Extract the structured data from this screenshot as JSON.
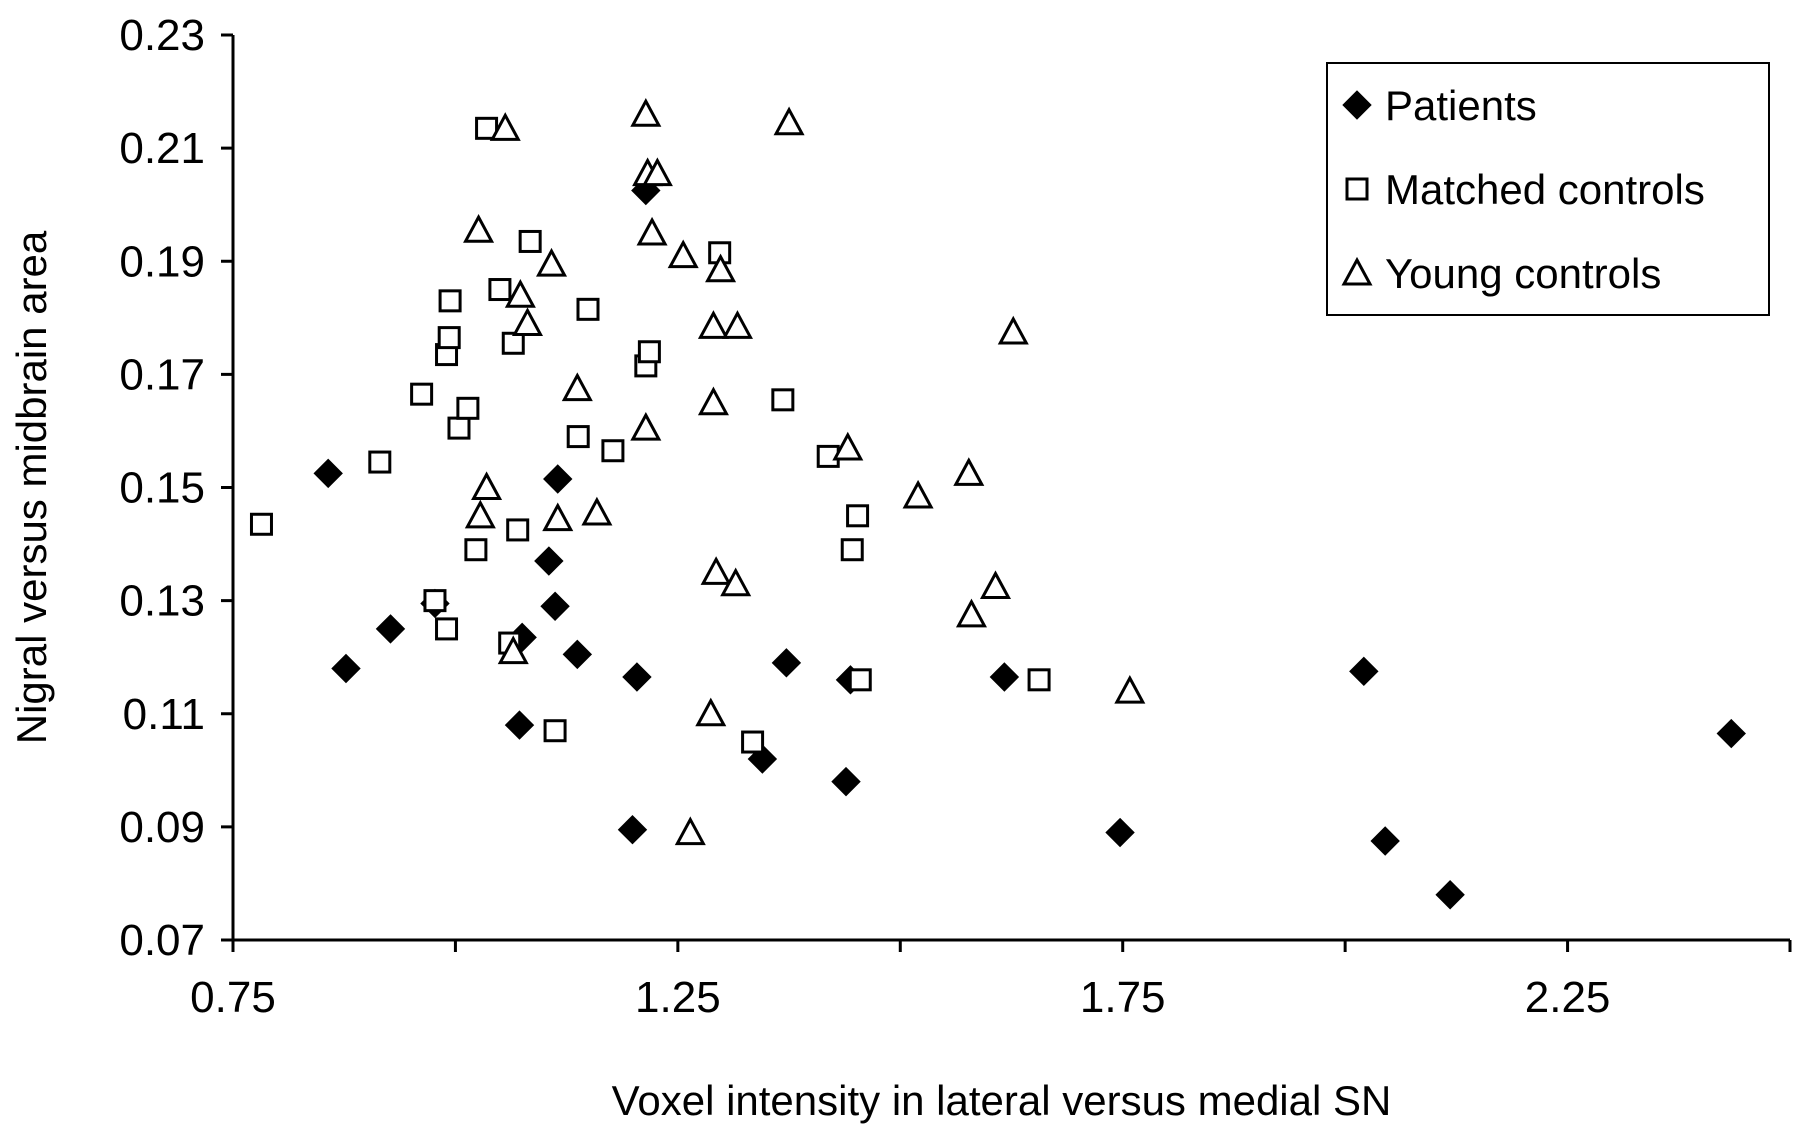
{
  "chart_data": {
    "type": "scatter",
    "xlabel": "Voxel intensity in lateral versus medial SN",
    "ylabel": "Nigral versus midbrain area",
    "xlim": [
      0.75,
      2.5
    ],
    "ylim": [
      0.07,
      0.23
    ],
    "xticks": [
      "0.75",
      "1.25",
      "1.75",
      "2.25"
    ],
    "yticks": [
      "0.07",
      "0.09",
      "0.11",
      "0.13",
      "0.15",
      "0.17",
      "0.19",
      "0.21",
      "0.23"
    ],
    "grid": false,
    "legend_position": "top-right",
    "series": [
      {
        "name": "Patients",
        "marker": "filled-diamond",
        "color": "#000000",
        "points": [
          [
            0.857,
            0.1525
          ],
          [
            0.877,
            0.118
          ],
          [
            0.927,
            0.125
          ],
          [
            0.977,
            0.1295
          ],
          [
            1.075,
            0.1235
          ],
          [
            1.072,
            0.108
          ],
          [
            1.105,
            0.137
          ],
          [
            1.112,
            0.129
          ],
          [
            1.115,
            0.1515
          ],
          [
            1.137,
            0.1205
          ],
          [
            1.199,
            0.0895
          ],
          [
            1.204,
            0.1165
          ],
          [
            1.214,
            0.2025
          ],
          [
            1.345,
            0.102
          ],
          [
            1.372,
            0.119
          ],
          [
            1.439,
            0.098
          ],
          [
            1.444,
            0.116
          ],
          [
            1.617,
            0.1165
          ],
          [
            1.747,
            0.089
          ],
          [
            2.021,
            0.1175
          ],
          [
            2.045,
            0.0875
          ],
          [
            2.118,
            0.078
          ],
          [
            2.434,
            0.1065
          ]
        ]
      },
      {
        "name": "Matched controls",
        "marker": "open-square",
        "color": "#000000",
        "points": [
          [
            0.782,
            0.1435
          ],
          [
            0.915,
            0.1545
          ],
          [
            0.962,
            0.1665
          ],
          [
            0.977,
            0.13
          ],
          [
            0.99,
            0.125
          ],
          [
            0.99,
            0.1735
          ],
          [
            0.993,
            0.1765
          ],
          [
            0.994,
            0.183
          ],
          [
            1.004,
            0.1605
          ],
          [
            1.014,
            0.164
          ],
          [
            1.023,
            0.139
          ],
          [
            1.035,
            0.2135
          ],
          [
            1.05,
            0.185
          ],
          [
            1.061,
            0.1225
          ],
          [
            1.065,
            0.1755
          ],
          [
            1.07,
            0.1425
          ],
          [
            1.084,
            0.1935
          ],
          [
            1.112,
            0.107
          ],
          [
            1.138,
            0.159
          ],
          [
            1.149,
            0.1815
          ],
          [
            1.177,
            0.1565
          ],
          [
            1.214,
            0.1715
          ],
          [
            1.218,
            0.174
          ],
          [
            1.297,
            0.1915
          ],
          [
            1.334,
            0.105
          ],
          [
            1.368,
            0.1655
          ],
          [
            1.419,
            0.1555
          ],
          [
            1.446,
            0.139
          ],
          [
            1.452,
            0.145
          ],
          [
            1.455,
            0.116
          ],
          [
            1.656,
            0.116
          ]
        ]
      },
      {
        "name": "Young controls",
        "marker": "open-triangle",
        "color": "#000000",
        "points": [
          [
            1.026,
            0.1955
          ],
          [
            1.028,
            0.145
          ],
          [
            1.035,
            0.15
          ],
          [
            1.056,
            0.2135
          ],
          [
            1.065,
            0.121
          ],
          [
            1.073,
            0.184
          ],
          [
            1.081,
            0.179
          ],
          [
            1.108,
            0.1895
          ],
          [
            1.115,
            0.1445
          ],
          [
            1.137,
            0.1675
          ],
          [
            1.159,
            0.1455
          ],
          [
            1.214,
            0.216
          ],
          [
            1.216,
            0.2055
          ],
          [
            1.214,
            0.1605
          ],
          [
            1.221,
            0.195
          ],
          [
            1.227,
            0.2055
          ],
          [
            1.256,
            0.191
          ],
          [
            1.264,
            0.089
          ],
          [
            1.287,
            0.11
          ],
          [
            1.29,
            0.1785
          ],
          [
            1.29,
            0.165
          ],
          [
            1.293,
            0.135
          ],
          [
            1.298,
            0.1885
          ],
          [
            1.317,
            0.1785
          ],
          [
            1.315,
            0.133
          ],
          [
            1.375,
            0.2145
          ],
          [
            1.441,
            0.157
          ],
          [
            1.52,
            0.1485
          ],
          [
            1.577,
            0.1525
          ],
          [
            1.58,
            0.1275
          ],
          [
            1.607,
            0.1325
          ],
          [
            1.627,
            0.1775
          ],
          [
            1.758,
            0.114
          ]
        ]
      }
    ]
  }
}
